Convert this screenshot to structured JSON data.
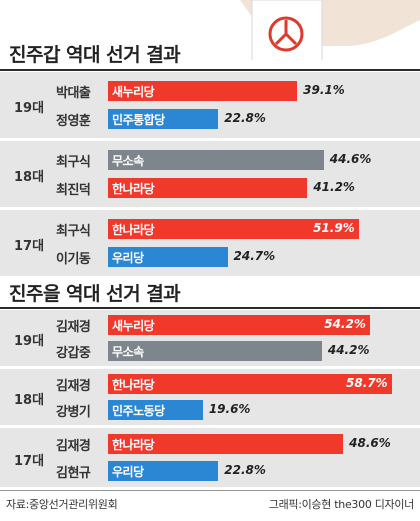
{
  "colors": {
    "saenuri": "#f0392b",
    "minju": "#2b86d4",
    "independent": "#7f858d",
    "hannara": "#f0392b",
    "uri": "#2b86d4",
    "minju_labor": "#2b86d4",
    "band": "#e6e6e6"
  },
  "chart_data": [
    {
      "type": "bar",
      "title": "진주갑 역대 선거 결과",
      "unit": "%",
      "xlim": [
        0,
        60
      ],
      "groups": [
        {
          "election": "19대",
          "rows": [
            {
              "candidate": "박대출",
              "party": "새누리당",
              "value": 39.1,
              "label": "39.1%",
              "color": "#f0392b"
            },
            {
              "candidate": "정영훈",
              "party": "민주통합당",
              "value": 22.8,
              "label": "22.8%",
              "color": "#2b86d4"
            }
          ]
        },
        {
          "election": "18대",
          "rows": [
            {
              "candidate": "최구식",
              "party": "무소속",
              "value": 44.6,
              "label": "44.6%",
              "color": "#7f858d"
            },
            {
              "candidate": "최진덕",
              "party": "한나라당",
              "value": 41.2,
              "label": "41.2%",
              "color": "#f0392b"
            }
          ]
        },
        {
          "election": "17대",
          "rows": [
            {
              "candidate": "최구식",
              "party": "한나라당",
              "value": 51.9,
              "label": "51.9%",
              "color": "#f0392b"
            },
            {
              "candidate": "이기동",
              "party": "우리당",
              "value": 24.7,
              "label": "24.7%",
              "color": "#2b86d4"
            }
          ]
        }
      ]
    },
    {
      "type": "bar",
      "title": "진주을 역대 선거 결과",
      "unit": "%",
      "xlim": [
        0,
        60
      ],
      "groups": [
        {
          "election": "19대",
          "rows": [
            {
              "candidate": "김재경",
              "party": "새누리당",
              "value": 54.2,
              "label": "54.2%",
              "color": "#f0392b"
            },
            {
              "candidate": "강갑중",
              "party": "무소속",
              "value": 44.2,
              "label": "44.2%",
              "color": "#7f858d"
            }
          ]
        },
        {
          "election": "18대",
          "rows": [
            {
              "candidate": "김재경",
              "party": "한나라당",
              "value": 58.7,
              "label": "58.7%",
              "color": "#f0392b"
            },
            {
              "candidate": "강병기",
              "party": "민주노동당",
              "value": 19.6,
              "label": "19.6%",
              "color": "#2b86d4"
            }
          ]
        },
        {
          "election": "17대",
          "rows": [
            {
              "candidate": "김재경",
              "party": "한나라당",
              "value": 48.6,
              "label": "48.6%",
              "color": "#f0392b"
            },
            {
              "candidate": "김현규",
              "party": "우리당",
              "value": 22.8,
              "label": "22.8%",
              "color": "#2b86d4"
            }
          ]
        }
      ]
    }
  ],
  "footer": {
    "source": "자료:중앙선거관리위원회",
    "credit": "그래픽:이승현 the300 디자이너"
  }
}
